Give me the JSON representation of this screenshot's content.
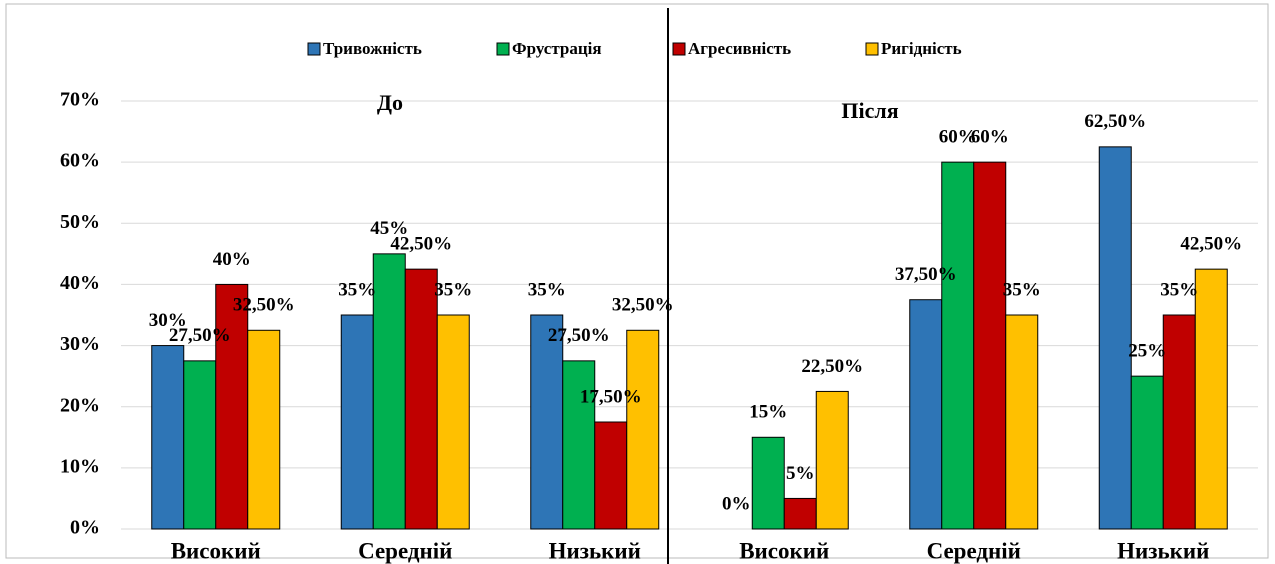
{
  "chart_data": {
    "type": "bar",
    "categories": [
      "Високий",
      "Середній",
      "Низький",
      "Високий",
      "Середній",
      "Низький"
    ],
    "annotations": [
      "До",
      "Після"
    ],
    "series": [
      {
        "name": "Тривожність",
        "color": "#2e75b6",
        "values": [
          30,
          35,
          35,
          0,
          37.5,
          62.5
        ],
        "value_labels": [
          "30%",
          "35%",
          "35%",
          "0%",
          "37,50%",
          "62,50%"
        ]
      },
      {
        "name": "Фрустрація",
        "color": "#00b050",
        "values": [
          27.5,
          45,
          27.5,
          15,
          60,
          25
        ],
        "value_labels": [
          "27,50%",
          "45%",
          "27,50%",
          "15%",
          "60%",
          "25%"
        ]
      },
      {
        "name": "Агресивність",
        "color": "#c00000",
        "values": [
          40,
          42.5,
          17.5,
          5,
          60,
          35
        ],
        "value_labels": [
          "40%",
          "42,50%",
          "17,50%",
          "5%",
          "60%",
          "35%"
        ]
      },
      {
        "name": "Ригідність",
        "color": "#ffc000",
        "values": [
          32.5,
          35,
          32.5,
          22.5,
          35,
          42.5
        ],
        "value_labels": [
          "32,50%",
          "35%",
          "32,50%",
          "22,50%",
          "35%",
          "42,50%"
        ]
      }
    ],
    "ylim": [
      0,
      70
    ],
    "yticks": [
      {
        "value": 0,
        "label": "0%"
      },
      {
        "value": 10,
        "label": "10%"
      },
      {
        "value": 20,
        "label": "20%"
      },
      {
        "value": 30,
        "label": "30%"
      },
      {
        "value": 40,
        "label": "40%"
      },
      {
        "value": 50,
        "label": "50%"
      },
      {
        "value": 60,
        "label": "60%"
      },
      {
        "value": 70,
        "label": "70%"
      }
    ],
    "grid": true,
    "legend": "top"
  }
}
